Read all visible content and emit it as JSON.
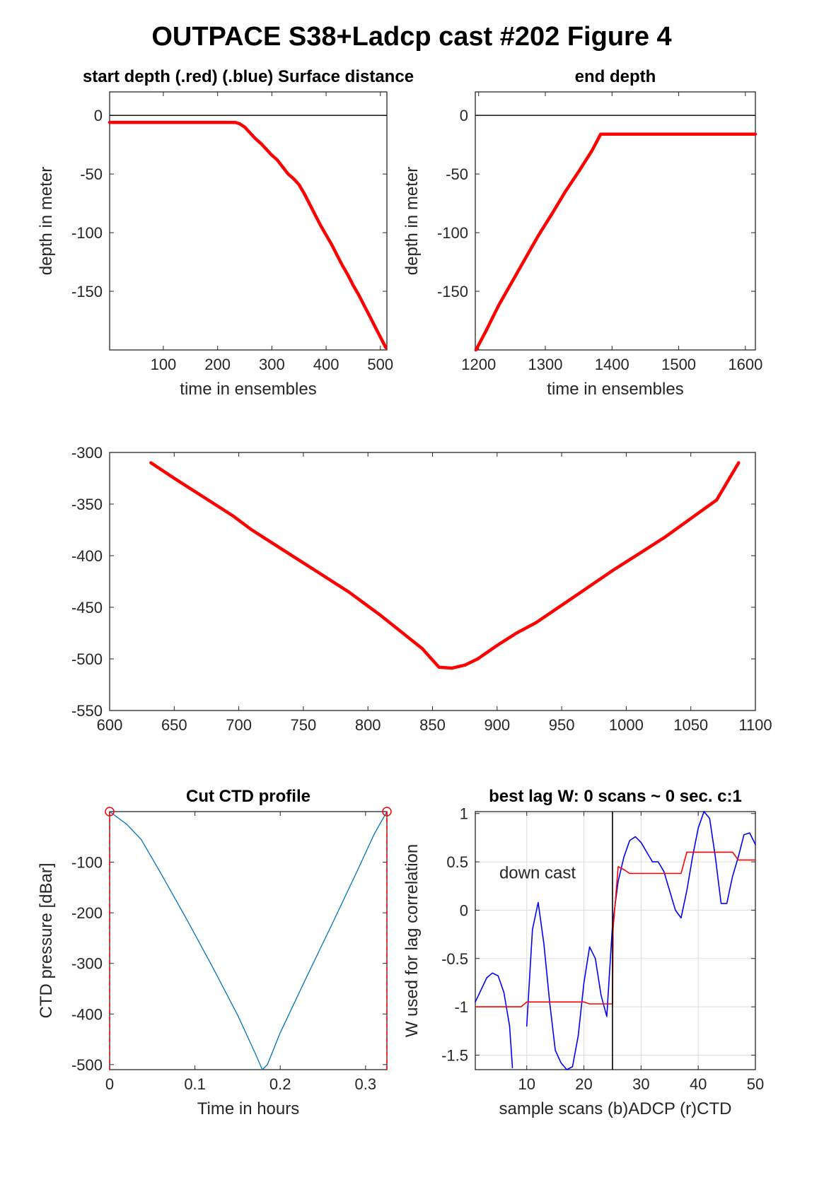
{
  "figure": {
    "title": "OUTPACE S38+Ladcp cast #202   Figure 4"
  },
  "chart_data": [
    {
      "id": "start",
      "type": "line",
      "title": "start depth (.red) (.blue) Surface distance",
      "xlabel": "time in ensembles",
      "ylabel": "depth in meter",
      "xlim": [
        1,
        512
      ],
      "ylim": [
        -200,
        20
      ],
      "xticks": [
        100,
        200,
        300,
        400,
        500
      ],
      "yticks": [
        0,
        -50,
        -100,
        -150
      ],
      "hlines": [
        {
          "y": 0,
          "color": "#000000"
        }
      ],
      "grid": false,
      "series": [
        {
          "color": "#ff0000",
          "x": [
            1,
            100,
            200,
            232,
            240,
            250,
            260,
            270,
            280,
            290,
            300,
            310,
            320,
            330,
            340,
            350,
            360,
            370,
            380,
            390,
            400,
            410,
            420,
            430,
            440,
            450,
            460,
            470,
            480,
            490,
            500,
            510
          ],
          "y": [
            -6,
            -6,
            -6,
            -6,
            -7,
            -10,
            -15,
            -20,
            -24,
            -29,
            -34,
            -38,
            -44,
            -50,
            -54,
            -59,
            -67,
            -76,
            -85,
            -94,
            -102,
            -110,
            -119,
            -128,
            -136,
            -145,
            -153,
            -162,
            -171,
            -180,
            -189,
            -198
          ]
        }
      ]
    },
    {
      "id": "end",
      "type": "line",
      "title": "end depth",
      "xlabel": "time in ensembles",
      "ylabel": "depth in meter",
      "xlim": [
        1195,
        1615
      ],
      "ylim": [
        -200,
        20
      ],
      "xticks": [
        1200,
        1300,
        1400,
        1500,
        1600
      ],
      "yticks": [
        0,
        -50,
        -100,
        -150
      ],
      "hlines": [
        {
          "y": 0,
          "color": "#000000"
        }
      ],
      "grid": false,
      "series": [
        {
          "color": "#ff0000",
          "x": [
            1196,
            1210,
            1230,
            1250,
            1270,
            1290,
            1310,
            1330,
            1350,
            1370,
            1383,
            1400,
            1500,
            1615
          ],
          "y": [
            -200,
            -185,
            -162,
            -142,
            -122,
            -102,
            -84,
            -65,
            -48,
            -30,
            -16,
            -16,
            -16,
            -16
          ]
        }
      ]
    },
    {
      "id": "middle",
      "type": "line",
      "title": "",
      "xlabel": "",
      "ylabel": "",
      "xlim": [
        600,
        1100
      ],
      "ylim": [
        -550,
        -300
      ],
      "xticks": [
        600,
        650,
        700,
        750,
        800,
        850,
        900,
        950,
        1000,
        1050,
        1100
      ],
      "yticks": [
        -300,
        -350,
        -400,
        -450,
        -500,
        -550
      ],
      "grid": false,
      "series": [
        {
          "color": "#ff0000",
          "x": [
            632,
            650,
            670,
            695,
            710,
            735,
            760,
            785,
            810,
            830,
            842,
            855,
            865,
            875,
            885,
            900,
            915,
            930,
            950,
            970,
            990,
            1010,
            1030,
            1050,
            1070,
            1087
          ],
          "y": [
            -310,
            -325,
            -341,
            -361,
            -375,
            -395,
            -415,
            -435,
            -458,
            -478,
            -490,
            -508,
            -509,
            -506,
            -500,
            -487,
            -475,
            -465,
            -448,
            -431,
            -414,
            -398,
            -382,
            -364,
            -346,
            -310
          ]
        }
      ]
    },
    {
      "id": "ctd",
      "type": "line",
      "title": "Cut CTD profile",
      "xlabel": "Time in hours",
      "ylabel": "CTD pressure [dBar]",
      "xlim": [
        0,
        0.325
      ],
      "ylim": [
        -510,
        0
      ],
      "xticks": [
        0,
        0.1,
        0.2,
        0.3
      ],
      "xticklabels": [
        "0",
        "0.1",
        "0.2",
        "0.3"
      ],
      "yticks": [
        -100,
        -200,
        -300,
        -400,
        -500
      ],
      "grid": false,
      "markers": [
        {
          "x": 0,
          "y": 0
        },
        {
          "x": 0.325,
          "y": 0
        }
      ],
      "vlines": [
        {
          "x": 0,
          "color": "#ff0000"
        },
        {
          "x": 0.325,
          "color": "#ff0000"
        }
      ],
      "series": [
        {
          "color": "#0072bd",
          "x": [
            0,
            0.02,
            0.037,
            0.06,
            0.09,
            0.12,
            0.15,
            0.17,
            0.179,
            0.185,
            0.2,
            0.23,
            0.26,
            0.29,
            0.31,
            0.325
          ],
          "y": [
            0,
            -25,
            -55,
            -122,
            -212,
            -305,
            -402,
            -475,
            -510,
            -500,
            -437,
            -330,
            -225,
            -118,
            -45,
            0
          ]
        }
      ]
    },
    {
      "id": "lag",
      "type": "line",
      "title": "best lag W: 0 scans ~ 0 sec.  c:1",
      "xlabel": "sample scans (b)ADCP (r)CTD",
      "ylabel": "W used for lag correlation",
      "xlim": [
        1,
        50
      ],
      "ylim": [
        -1.65,
        1.02
      ],
      "xticks": [
        10,
        20,
        30,
        40,
        50
      ],
      "yticks": [
        1,
        0.5,
        0,
        -0.5,
        -1,
        -1.5
      ],
      "grid": true,
      "annotation": "down cast",
      "vlines": [
        {
          "x": 25,
          "color": "#000000"
        }
      ],
      "series": [
        {
          "color": "#0000ff",
          "x": [
            1,
            3,
            4,
            5,
            6,
            7,
            7.5
          ],
          "y": [
            -0.95,
            -0.7,
            -0.65,
            -0.68,
            -0.85,
            -1.2,
            -1.63
          ]
        },
        {
          "color": "#0000ff",
          "x": [
            10,
            11,
            12,
            13,
            14,
            15,
            16,
            17,
            18,
            19,
            20,
            21,
            22,
            23,
            24,
            25,
            26,
            27,
            28,
            29,
            30,
            31,
            32,
            33,
            34,
            35,
            36,
            37,
            38,
            39,
            40,
            41,
            42,
            43,
            44,
            45,
            46,
            47,
            48,
            49,
            50
          ],
          "y": [
            -1.2,
            -0.2,
            0.08,
            -0.35,
            -0.95,
            -1.45,
            -1.58,
            -1.65,
            -1.62,
            -1.3,
            -0.75,
            -0.38,
            -0.5,
            -0.88,
            -1.1,
            -0.15,
            0.3,
            0.55,
            0.72,
            0.76,
            0.7,
            0.6,
            0.5,
            0.5,
            0.4,
            0.2,
            0.0,
            -0.08,
            0.2,
            0.55,
            0.85,
            1.02,
            0.95,
            0.55,
            0.07,
            0.07,
            0.35,
            0.55,
            0.78,
            0.8,
            0.68
          ]
        },
        {
          "color": "#ff0000",
          "x": [
            1,
            9,
            10,
            20,
            21,
            25,
            25.1,
            26,
            27,
            28,
            37,
            38,
            46,
            47,
            50
          ],
          "y": [
            -1.0,
            -1.0,
            -0.95,
            -0.95,
            -0.97,
            -0.97,
            -0.2,
            0.45,
            0.42,
            0.38,
            0.38,
            0.6,
            0.6,
            0.52,
            0.52
          ]
        }
      ]
    }
  ]
}
